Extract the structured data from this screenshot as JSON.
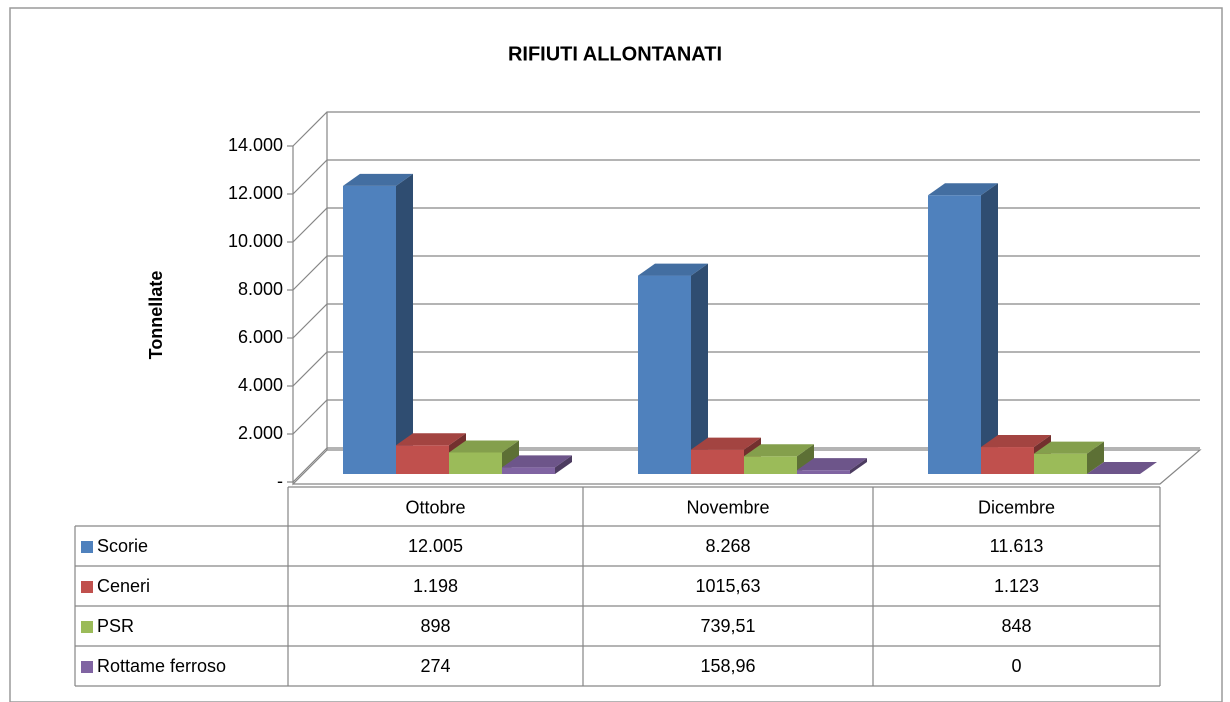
{
  "chart_data": {
    "type": "bar3d",
    "title": "RIFIUTI ALLONTANATI",
    "y_label": "Tonnellate",
    "categories": [
      "Ottobre",
      "Novembre",
      "Dicembre"
    ],
    "series": [
      {
        "name": "Scorie",
        "color": "#4f81bd",
        "values": [
          12005,
          8268,
          11613
        ],
        "value_labels": [
          "12.005",
          "8.268",
          "11.613"
        ]
      },
      {
        "name": "Ceneri",
        "color": "#c0504d",
        "values": [
          1198,
          1015.63,
          1123
        ],
        "value_labels": [
          "1.198",
          "1015,63",
          "1.123"
        ]
      },
      {
        "name": "PSR",
        "color": "#9bbb59",
        "values": [
          898,
          739.51,
          848
        ],
        "value_labels": [
          "898",
          "739,51",
          "848"
        ]
      },
      {
        "name": "Rottame ferroso",
        "color": "#8064a2",
        "values": [
          274,
          158.96,
          0
        ],
        "value_labels": [
          "274",
          "158,96",
          "0"
        ]
      }
    ],
    "ylim": [
      0,
      14000
    ],
    "yticks": [
      {
        "value": 0,
        "label": "-"
      },
      {
        "value": 2000,
        "label": "2.000"
      },
      {
        "value": 4000,
        "label": "4.000"
      },
      {
        "value": 6000,
        "label": "6.000"
      },
      {
        "value": 8000,
        "label": "8.000"
      },
      {
        "value": 10000,
        "label": "10.000"
      },
      {
        "value": 12000,
        "label": "12.000"
      },
      {
        "value": 14000,
        "label": "14.000"
      }
    ],
    "grid": true,
    "legend": "table"
  }
}
